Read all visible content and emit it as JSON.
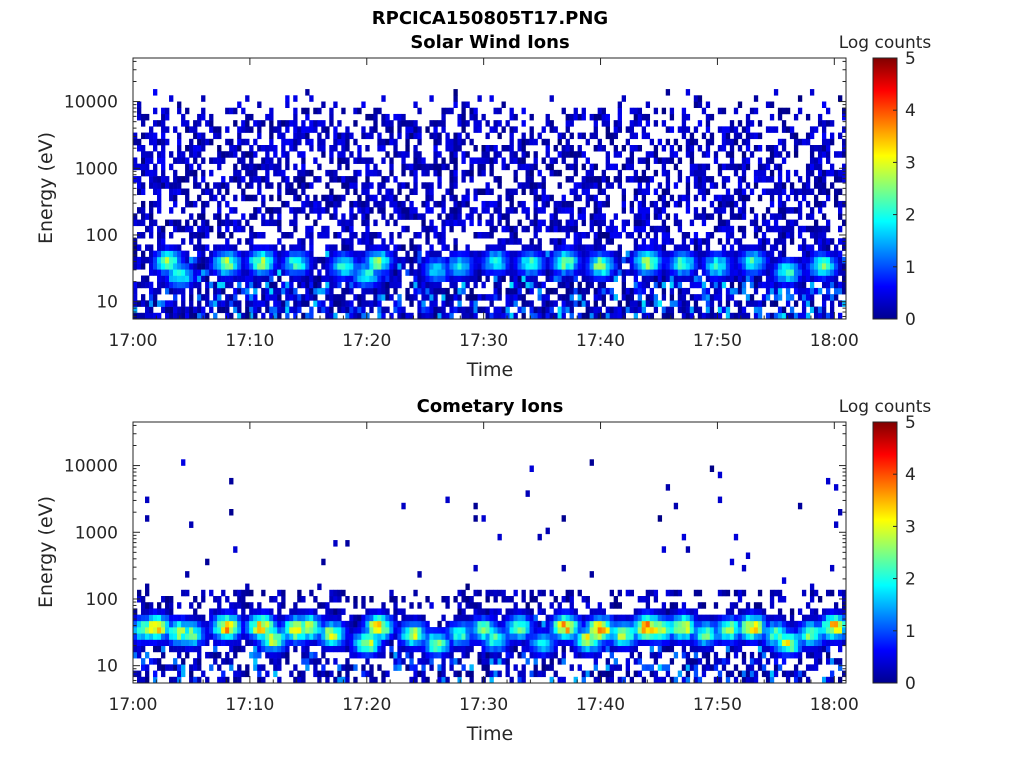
{
  "figure": {
    "title": "RPCICA150805T17.PNG"
  },
  "chart_data": [
    {
      "type": "heatmap",
      "title": "Solar Wind Ions",
      "xlabel": "Time",
      "ylabel": "Energy (eV)",
      "x_range": [
        "17:00",
        "18:01"
      ],
      "x_ticks": [
        "17:00",
        "17:10",
        "17:20",
        "17:30",
        "17:40",
        "17:50",
        "18:00"
      ],
      "y_scale": "log",
      "y_range": [
        5.5,
        45000
      ],
      "y_ticks": [
        {
          "value": 10,
          "label": "10"
        },
        {
          "value": 100,
          "label": "100"
        },
        {
          "value": 1000,
          "label": "1000"
        },
        {
          "value": 10000,
          "label": "10000"
        }
      ],
      "colorbar": {
        "label": "Log counts",
        "min": 0,
        "max": 5,
        "ticks": [
          "0",
          "1",
          "2",
          "3",
          "4",
          "5"
        ],
        "colormap": "jet"
      },
      "background_level": {
        "energy_range_eV": [
          6,
          15000
        ],
        "log_counts": [
          0,
          0.6
        ],
        "fill_fraction": 0.5
      },
      "peaks": [
        {
          "time": "17:03",
          "energy_eV": 40,
          "log_counts": 2.8
        },
        {
          "time": "17:04",
          "energy_eV": 25,
          "log_counts": 2.3
        },
        {
          "time": "17:08",
          "energy_eV": 38,
          "log_counts": 2.9
        },
        {
          "time": "17:11",
          "energy_eV": 40,
          "log_counts": 2.9
        },
        {
          "time": "17:14",
          "energy_eV": 38,
          "log_counts": 2.4
        },
        {
          "time": "17:18",
          "energy_eV": 35,
          "log_counts": 2.4
        },
        {
          "time": "17:20",
          "energy_eV": 25,
          "log_counts": 2.3
        },
        {
          "time": "17:21",
          "energy_eV": 40,
          "log_counts": 2.6
        },
        {
          "time": "17:26",
          "energy_eV": 30,
          "log_counts": 2.0
        },
        {
          "time": "17:28",
          "energy_eV": 35,
          "log_counts": 2.0
        },
        {
          "time": "17:31",
          "energy_eV": 40,
          "log_counts": 2.2
        },
        {
          "time": "17:34",
          "energy_eV": 38,
          "log_counts": 2.3
        },
        {
          "time": "17:37",
          "energy_eV": 40,
          "log_counts": 2.8
        },
        {
          "time": "17:40",
          "energy_eV": 35,
          "log_counts": 2.8
        },
        {
          "time": "17:44",
          "energy_eV": 40,
          "log_counts": 3.0
        },
        {
          "time": "17:47",
          "energy_eV": 38,
          "log_counts": 2.5
        },
        {
          "time": "17:50",
          "energy_eV": 35,
          "log_counts": 2.3
        },
        {
          "time": "17:53",
          "energy_eV": 40,
          "log_counts": 2.3
        },
        {
          "time": "17:56",
          "energy_eV": 28,
          "log_counts": 2.4
        },
        {
          "time": "17:59",
          "energy_eV": 35,
          "log_counts": 2.6
        }
      ]
    },
    {
      "type": "heatmap",
      "title": "Cometary Ions",
      "xlabel": "Time",
      "ylabel": "Energy (eV)",
      "x_range": [
        "17:00",
        "18:01"
      ],
      "x_ticks": [
        "17:00",
        "17:10",
        "17:20",
        "17:30",
        "17:40",
        "17:50",
        "18:00"
      ],
      "y_scale": "log",
      "y_range": [
        5.5,
        45000
      ],
      "y_ticks": [
        {
          "value": 10,
          "label": "10"
        },
        {
          "value": 100,
          "label": "100"
        },
        {
          "value": 1000,
          "label": "1000"
        },
        {
          "value": 10000,
          "label": "10000"
        }
      ],
      "colorbar": {
        "label": "Log counts",
        "min": 0,
        "max": 5,
        "ticks": [
          "0",
          "1",
          "2",
          "3",
          "4",
          "5"
        ],
        "colormap": "jet"
      },
      "background_level": {
        "energy_range_eV": [
          6,
          150
        ],
        "log_counts": [
          0,
          0.5
        ],
        "fill_fraction": 0.35
      },
      "sparse_high_energy": {
        "energy_range_eV": [
          150,
          12000
        ],
        "log_counts": 0.1,
        "fill_fraction": 0.015
      },
      "peaks": [
        {
          "time": "17:01",
          "energy_eV": 35,
          "log_counts": 2.6
        },
        {
          "time": "17:02",
          "energy_eV": 38,
          "log_counts": 3.6
        },
        {
          "time": "17:04",
          "energy_eV": 32,
          "log_counts": 2.9
        },
        {
          "time": "17:05",
          "energy_eV": 30,
          "log_counts": 2.6
        },
        {
          "time": "17:08",
          "energy_eV": 38,
          "log_counts": 3.8
        },
        {
          "time": "17:11",
          "energy_eV": 38,
          "log_counts": 3.7
        },
        {
          "time": "17:12",
          "energy_eV": 25,
          "log_counts": 3.0
        },
        {
          "time": "17:14",
          "energy_eV": 35,
          "log_counts": 3.5
        },
        {
          "time": "17:15",
          "energy_eV": 38,
          "log_counts": 3.3
        },
        {
          "time": "17:17",
          "energy_eV": 30,
          "log_counts": 3.0
        },
        {
          "time": "17:20",
          "energy_eV": 22,
          "log_counts": 3.1
        },
        {
          "time": "17:21",
          "energy_eV": 38,
          "log_counts": 3.6
        },
        {
          "time": "17:24",
          "energy_eV": 30,
          "log_counts": 3.0
        },
        {
          "time": "17:26",
          "energy_eV": 22,
          "log_counts": 2.7
        },
        {
          "time": "17:28",
          "energy_eV": 30,
          "log_counts": 2.3
        },
        {
          "time": "17:30",
          "energy_eV": 35,
          "log_counts": 2.7
        },
        {
          "time": "17:31",
          "energy_eV": 25,
          "log_counts": 2.4
        },
        {
          "time": "17:33",
          "energy_eV": 38,
          "log_counts": 2.7
        },
        {
          "time": "17:35",
          "energy_eV": 22,
          "log_counts": 2.0
        },
        {
          "time": "17:37",
          "energy_eV": 38,
          "log_counts": 3.8
        },
        {
          "time": "17:39",
          "energy_eV": 25,
          "log_counts": 3.2
        },
        {
          "time": "17:40",
          "energy_eV": 35,
          "log_counts": 3.9
        },
        {
          "time": "17:42",
          "energy_eV": 30,
          "log_counts": 3.1
        },
        {
          "time": "17:44",
          "energy_eV": 38,
          "log_counts": 4.1
        },
        {
          "time": "17:45",
          "energy_eV": 35,
          "log_counts": 3.2
        },
        {
          "time": "17:47",
          "energy_eV": 38,
          "log_counts": 3.5
        },
        {
          "time": "17:49",
          "energy_eV": 30,
          "log_counts": 2.5
        },
        {
          "time": "17:51",
          "energy_eV": 35,
          "log_counts": 2.8
        },
        {
          "time": "17:53",
          "energy_eV": 38,
          "log_counts": 3.6
        },
        {
          "time": "17:55",
          "energy_eV": 30,
          "log_counts": 2.6
        },
        {
          "time": "17:56",
          "energy_eV": 22,
          "log_counts": 3.1
        },
        {
          "time": "17:58",
          "energy_eV": 30,
          "log_counts": 2.8
        },
        {
          "time": "18:00",
          "energy_eV": 38,
          "log_counts": 3.6
        }
      ]
    }
  ]
}
